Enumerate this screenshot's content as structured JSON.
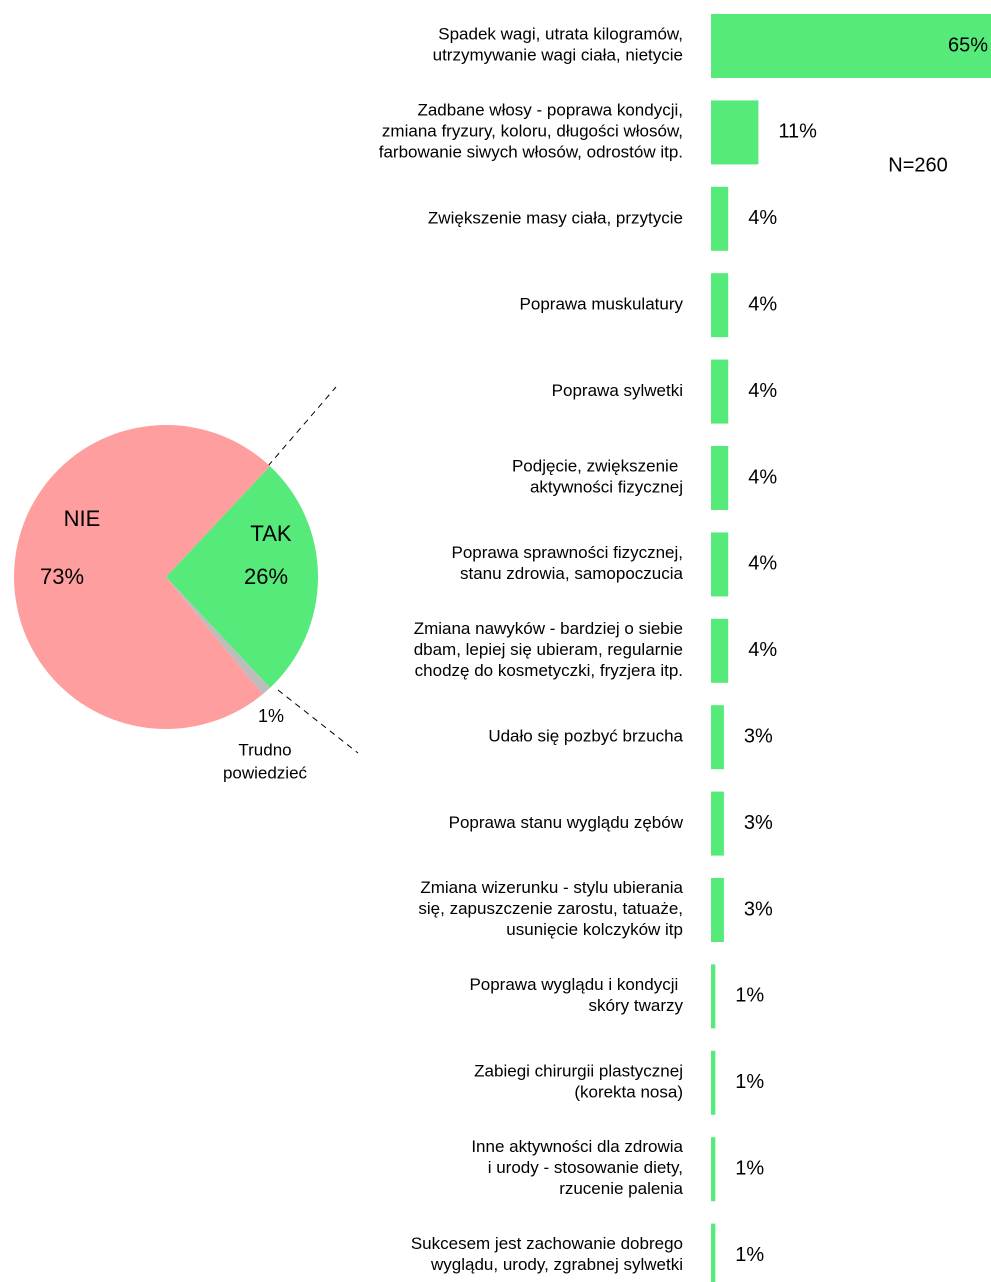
{
  "chart_data": [
    {
      "type": "pie",
      "categories": [
        "NIE",
        "TAK",
        "Trudno\npowiedzieć"
      ],
      "values": [
        73,
        26,
        1
      ],
      "value_labels": [
        "73%",
        "26%",
        "1%"
      ],
      "colors": [
        "#ff9e9e",
        "#55ea7a",
        "#bdbdbd"
      ]
    },
    {
      "type": "bar",
      "orientation": "horizontal",
      "annotation": "N=260",
      "categories": [
        "Spadek wagi, utrata kilogramów,\nutrzymywanie wagi ciała, nietycie",
        "Zadbane włosy - poprawa kondycji,\nzmiana fryzury, koloru, długości włosów,\nfarbowanie siwych włosów, odrostów itp.",
        "Zwiększenie masy ciała, przytycie",
        "Poprawa muskulatury",
        "Poprawa sylwetki",
        "Podjęcie, zwiększenie \naktywności fizycznej",
        "Poprawa sprawności fizycznej,\nstanu zdrowia, samopoczucia",
        "Zmiana nawyków - bardziej o siebie\ndbam, lepiej się ubieram, regularnie\nchodzę do kosmetyczki, fryzjera itp.",
        "Udało się pozbyć brzucha",
        "Poprawa stanu wyglądu zębów",
        "Zmiana wizerunku - stylu ubierania\nsię, zapuszczenie zarostu, tatuaże,\nusunięcie kolczyków itp",
        "Poprawa wyglądu i kondycji \nskóry twarzy",
        "Zabiegi chirurgii plastycznej\n(korekta nosa)",
        "Inne aktywności dla zdrowia\ni urody - stosowanie diety,\nrzucenie palenia",
        "Sukcesem jest zachowanie dobrego\nwyglądu, urody, zgrabnej sylwetki"
      ],
      "values": [
        65,
        11,
        4,
        4,
        4,
        4,
        4,
        4,
        3,
        3,
        3,
        1,
        1,
        1,
        1
      ],
      "value_labels": [
        "65%",
        "11%",
        "4%",
        "4%",
        "4%",
        "4%",
        "4%",
        "4%",
        "3%",
        "3%",
        "3%",
        "1%",
        "1%",
        "1%",
        "1%"
      ],
      "color": "#55ea7a",
      "xlim": [
        0,
        65
      ]
    }
  ]
}
